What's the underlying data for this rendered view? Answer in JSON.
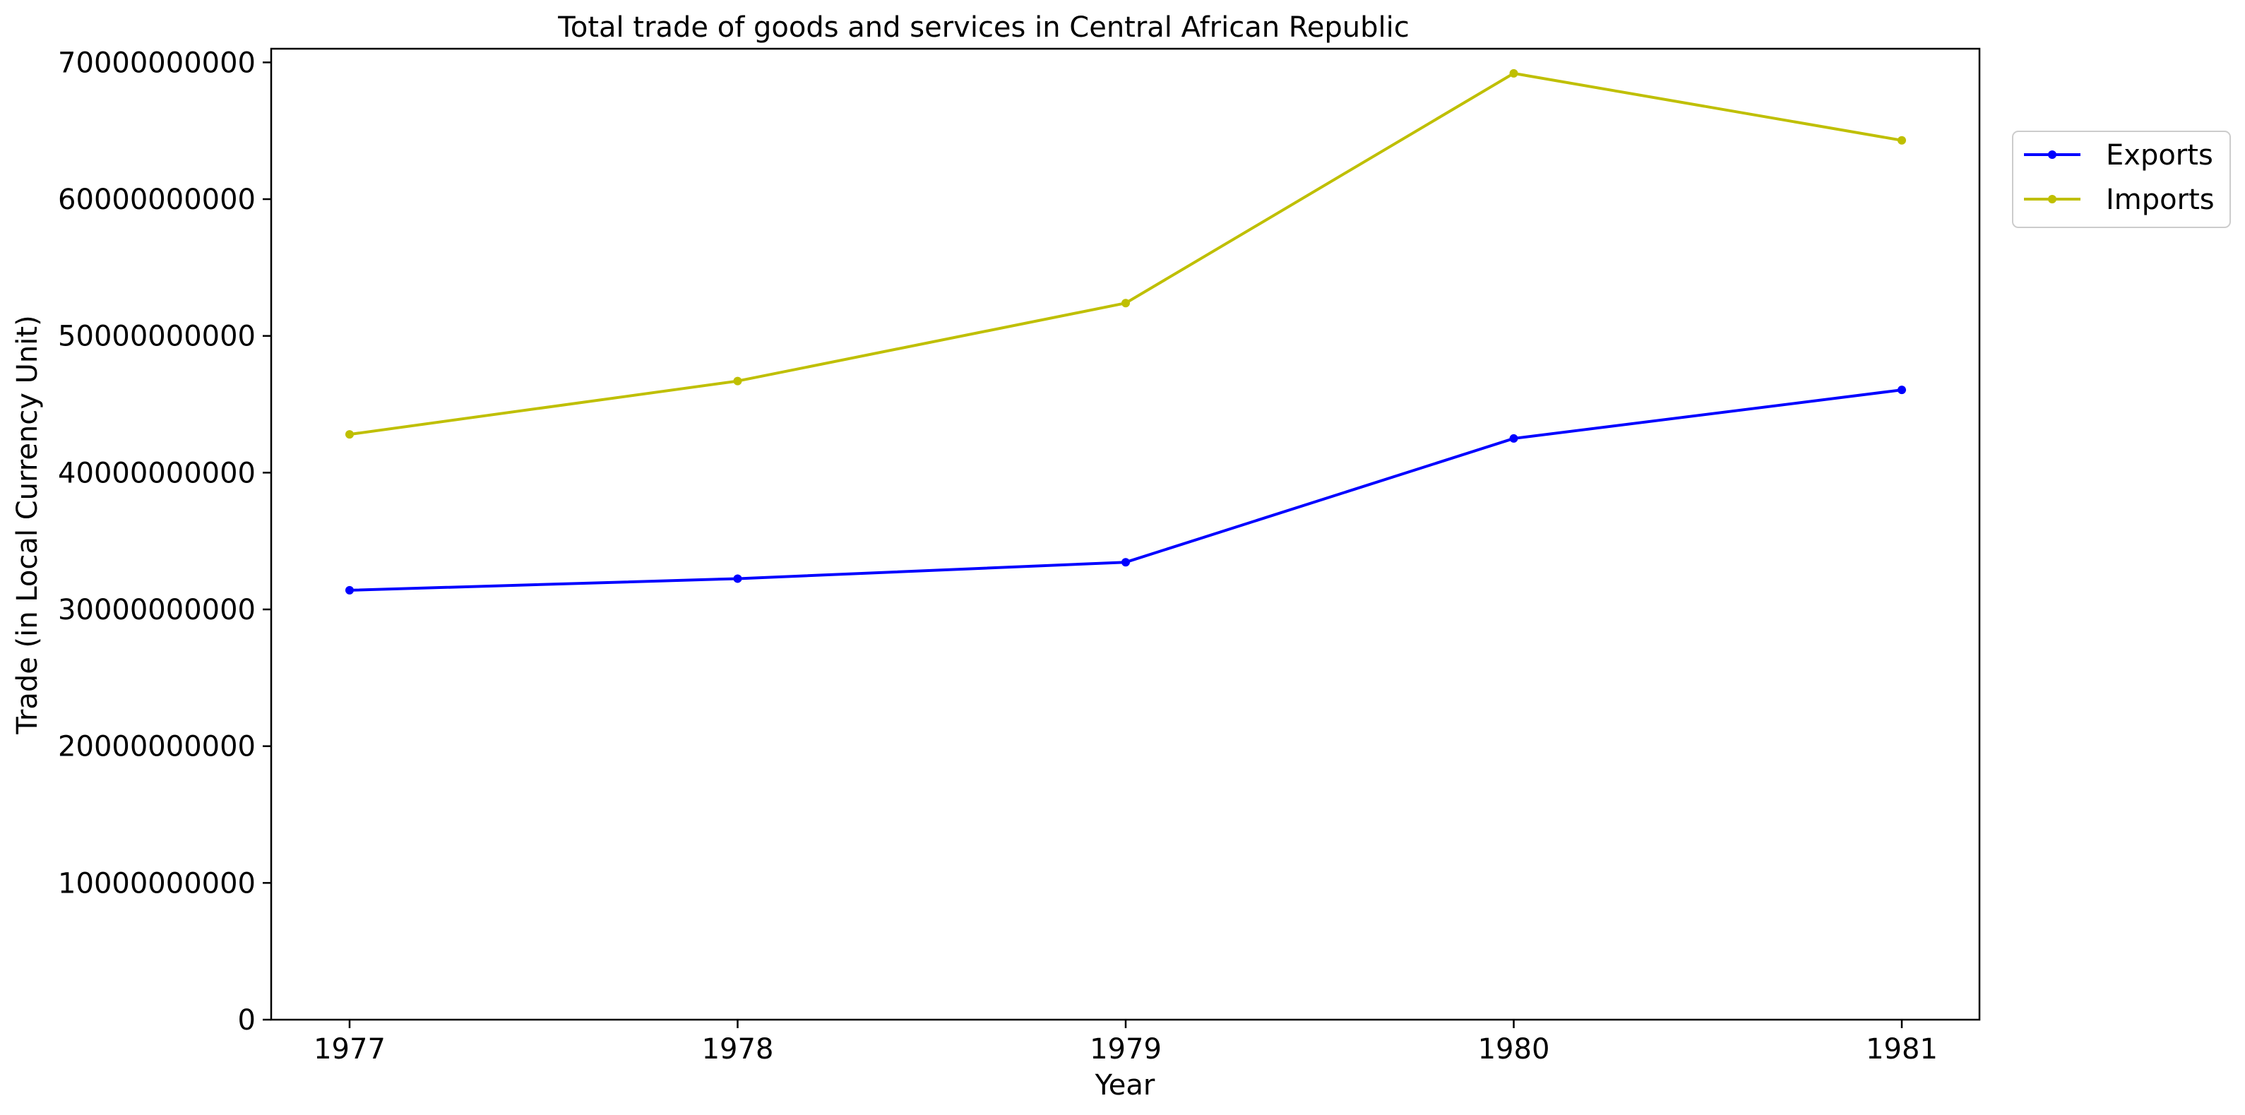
{
  "chart_data": {
    "type": "line",
    "title": "Total trade of goods and services in Central African Republic",
    "xlabel": "Year",
    "ylabel": "Trade (in Local Currency Unit)",
    "x": [
      "1977",
      "1978",
      "1979",
      "1980",
      "1981"
    ],
    "ylim": [
      0,
      71000000000
    ],
    "yticks": [
      0,
      10000000000,
      20000000000,
      30000000000,
      40000000000,
      50000000000,
      60000000000,
      70000000000
    ],
    "ytick_labels": [
      "0",
      "10000000000",
      "20000000000",
      "30000000000",
      "40000000000",
      "50000000000",
      "60000000000",
      "70000000000"
    ],
    "grid": false,
    "legend_position": "outside top-right",
    "series": [
      {
        "name": "Exports",
        "color": "#0000ff",
        "values": [
          31400000000,
          32250000000,
          33450000000,
          42500000000,
          46050000000
        ]
      },
      {
        "name": "Imports",
        "color": "#bfbf00",
        "values": [
          42800000000,
          46700000000,
          52400000000,
          69200000000,
          64300000000
        ]
      }
    ]
  }
}
